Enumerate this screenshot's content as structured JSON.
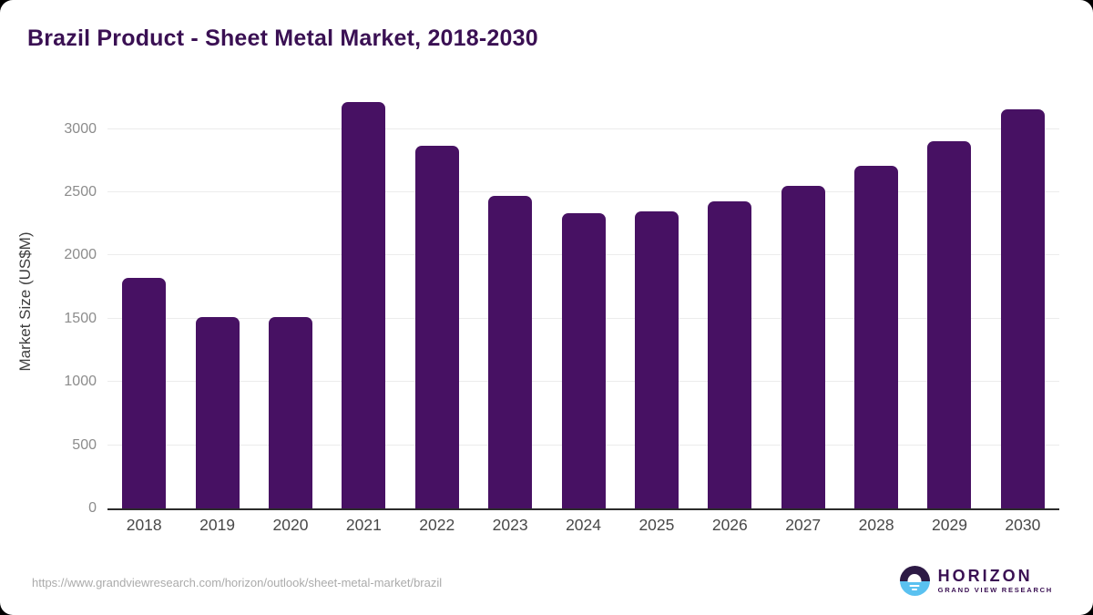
{
  "page": {
    "title": "Brazil Product - Sheet Metal Market, 2018-2030"
  },
  "chart_data": {
    "type": "bar",
    "title": "Brazil Product - Sheet Metal Market, 2018-2030",
    "xlabel": "",
    "ylabel": "Market Size (US$M)",
    "categories": [
      "2018",
      "2019",
      "2020",
      "2021",
      "2022",
      "2023",
      "2024",
      "2025",
      "2026",
      "2027",
      "2028",
      "2029",
      "2030"
    ],
    "values": [
      1820,
      1515,
      1515,
      3215,
      2870,
      2470,
      2335,
      2350,
      2425,
      2550,
      2705,
      2900,
      3155
    ],
    "ylim": [
      0,
      3270
    ],
    "yticks": [
      0,
      500,
      1000,
      1500,
      2000,
      2500,
      3000
    ],
    "grid": "horizontal",
    "legend": "none",
    "bar_color": "#471163"
  },
  "footer": {
    "source_url": "https://www.grandviewresearch.com/horizon/outlook/sheet-metal-market/brazil",
    "logo": {
      "name": "HORIZON",
      "subtitle": "GRAND VIEW RESEARCH"
    }
  },
  "theme": {
    "card_background": "#ffffff",
    "page_background": "#000000",
    "title_color": "#3a1053",
    "bar_color": "#471163",
    "grid_color": "#ececec",
    "axis_line_color": "#2b2b2b",
    "ytick_color": "#8c8c8c",
    "xtick_color": "#484848",
    "url_color": "#ababab",
    "logo_purple": "#2d1a45",
    "logo_blue": "#5ac1f0"
  }
}
